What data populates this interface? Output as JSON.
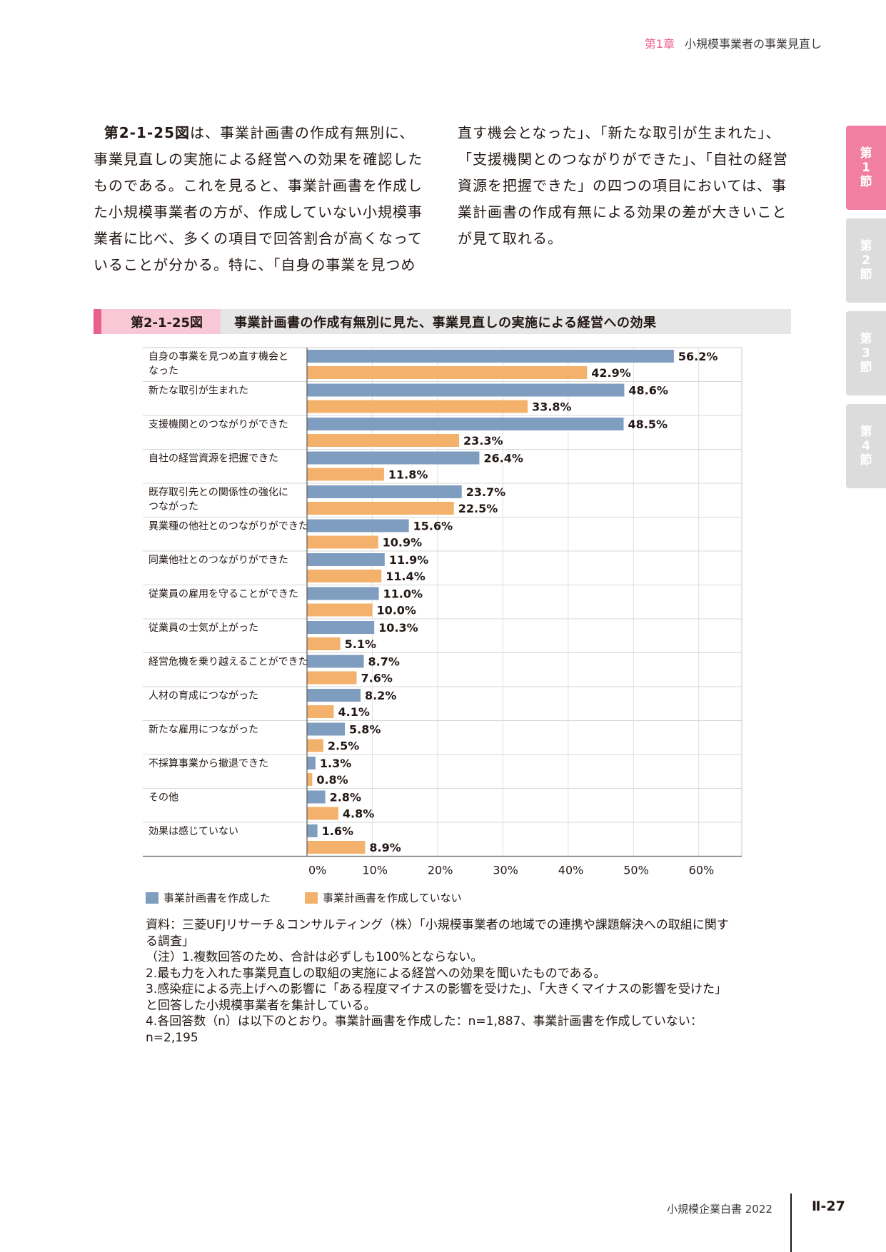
{
  "running_head": {
    "chapter": "第1章",
    "title": "小規模事業者の事業見直し"
  },
  "body": {
    "left": [
      {
        "bold": "第2-1-25図",
        "text": "は、事業計画書の作成有無別に、事業見直しの実施による経営への効果を確認したものである。これを見ると、事業計画書を作成した小規模事業者の方が、作成していない小規模事業者に比べ、多くの項目で回答割合が高くなっていることが分かる。特に、「自身の事業を見つめ"
      }
    ],
    "right": "直す機会となった」、「新たな取引が生まれた」、「支援機関とのつながりができた」、「自社の経営資源を把握できた」の四つの項目においては、事業計画書の作成有無による効果の差が大きいことが見て取れる。"
  },
  "side_tabs": [
    {
      "label": "第1節",
      "active": true
    },
    {
      "label": "第2節",
      "active": false
    },
    {
      "label": "第3節",
      "active": false
    },
    {
      "label": "第4節",
      "active": false
    }
  ],
  "figure": {
    "number": "第2-1-25図",
    "title": "事業計画書の作成有無別に見た、事業見直しの実施による経営への効果"
  },
  "chart_data": {
    "type": "bar",
    "orientation": "horizontal",
    "categories": [
      [
        "自身の事業を見つめ直す機会と",
        "なった"
      ],
      [
        "新たな取引が生まれた"
      ],
      [
        "支援機関とのつながりができた"
      ],
      [
        "自社の経営資源を把握できた"
      ],
      [
        "既存取引先との関係性の強化に",
        "つながった"
      ],
      [
        "異業種の他社とのつながりができた"
      ],
      [
        "同業他社とのつながりができた"
      ],
      [
        "従業員の雇用を守ることができた"
      ],
      [
        "従業員の士気が上がった"
      ],
      [
        "経営危機を乗り越えることができた"
      ],
      [
        "人材の育成につながった"
      ],
      [
        "新たな雇用につながった"
      ],
      [
        "不採算事業から撤退できた"
      ],
      [
        "その他"
      ],
      [
        "効果は感じていない"
      ]
    ],
    "series": [
      {
        "name": "事業計画書を作成した",
        "color": "#7f9dbf",
        "values": [
          56.2,
          48.6,
          48.5,
          26.4,
          23.7,
          15.6,
          11.9,
          11.0,
          10.3,
          8.7,
          8.2,
          5.8,
          1.3,
          2.8,
          1.6
        ]
      },
      {
        "name": "事業計画書を作成していない",
        "color": "#f4b16b",
        "values": [
          42.9,
          33.8,
          23.3,
          11.8,
          22.5,
          10.9,
          11.4,
          10.0,
          5.1,
          7.6,
          4.1,
          2.5,
          0.8,
          4.8,
          8.9
        ]
      }
    ],
    "value_format": "percent_1dp",
    "xlim": [
      0,
      66.6
    ],
    "xticks": [
      0,
      10,
      20,
      30,
      40,
      50,
      60
    ],
    "xtick_labels": [
      "0%",
      "10%",
      "20%",
      "30%",
      "40%",
      "50%",
      "60%"
    ],
    "grid": true,
    "legend_position": "bottom-left"
  },
  "notes": [
    "資料：三菱UFJリサーチ＆コンサルティング（株）「小規模事業者の地域での連携や課題解決への取組に関する調査」",
    "（注）1.複数回答のため、合計は必ずしも100%とならない。",
    "2.最も力を入れた事業見直しの取組の実施による経営への効果を聞いたものである。",
    "3.感染症による売上げへの影響に「ある程度マイナスの影響を受けた」、「大きくマイナスの影響を受けた」と回答した小規模事業者を集計している。",
    "4.各回答数（n）は以下のとおり。事業計画書を作成した：n=1,887、事業計画書を作成していない：n=2,195"
  ],
  "footer": {
    "book": "小規模企業白書 2022",
    "page": "Ⅱ-27"
  }
}
